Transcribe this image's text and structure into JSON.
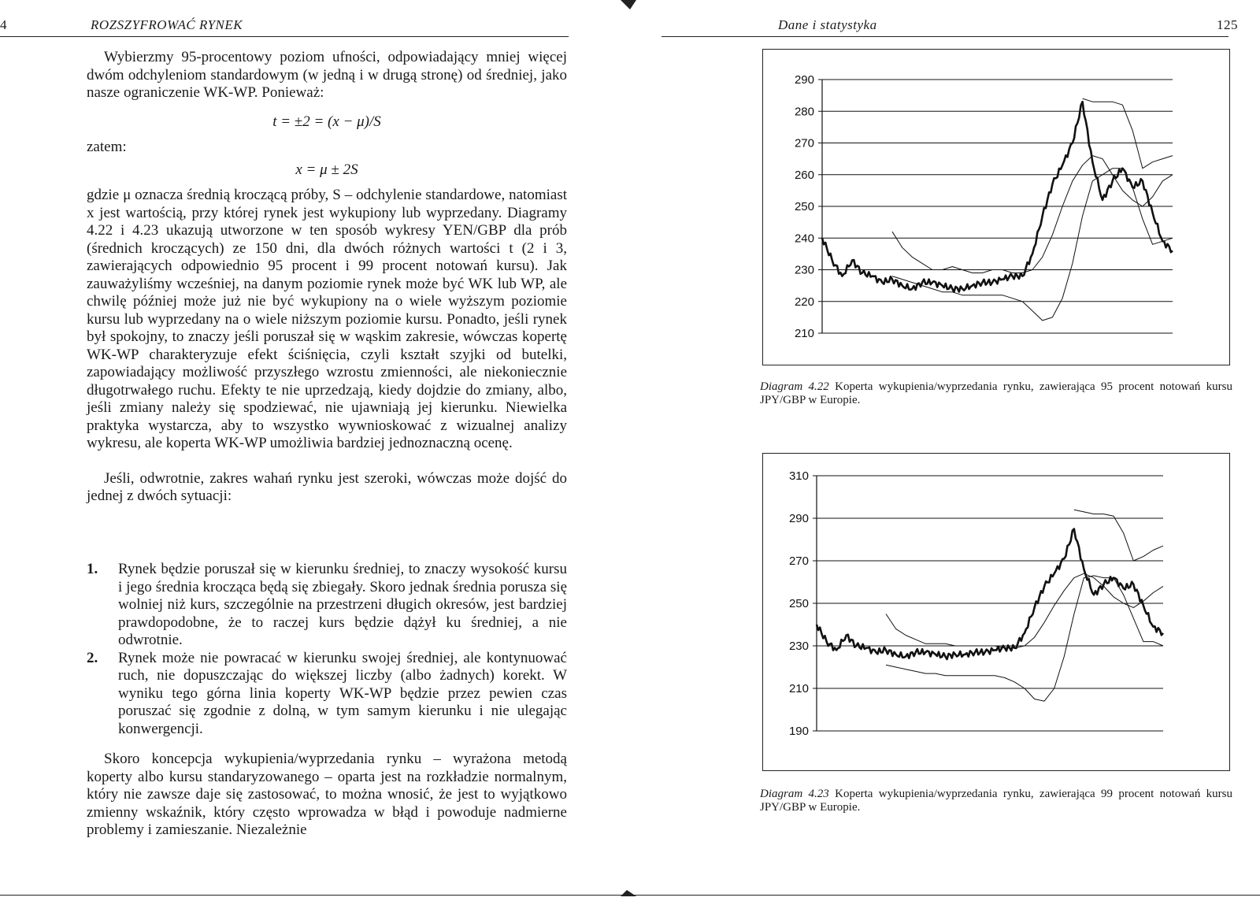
{
  "left_page": {
    "page_number": "4",
    "running_title": "ROZSZYFROWAĆ RYNEK",
    "para1": "Wybierzmy 95-procentowy poziom ufności, odpowiadający mniej więcej dwóm odchyleniom standardowym (w jedną i w drugą stronę) od średniej, jako nasze ograniczenie WK-WP. Ponieważ:",
    "formula1": "t = ±2 = (x − μ)/S",
    "zatem": "zatem:",
    "formula2": "x = μ ± 2S",
    "para2": "gdzie μ oznacza średnią kroczącą próby, S – odchylenie standardowe, natomiast x jest wartością, przy której rynek jest wykupiony lub wyprzedany. Diagramy 4.22 i 4.23 ukazują utworzone w ten sposób wykresy YEN/GBP dla prób (średnich kroczących) ze 150 dni, dla dwóch różnych wartości t (2 i 3, zawierających odpowiednio 95 procent i 99 procent notowań kursu). Jak zauważyliśmy wcześniej, na danym poziomie rynek może być WK lub WP, ale chwilę później może już nie być wykupiony na o wiele wyższym poziomie kursu lub wyprzedany na o wiele niższym poziomie kursu. Ponadto, jeśli rynek był spokojny, to znaczy jeśli poruszał się w wąskim zakresie, wówczas kopertę WK-WP charakteryzuje efekt ściśnięcia, czyli kształt szyjki od butelki, zapowiadający możliwość przyszłego wzrostu zmienności, ale niekoniecznie długotrwałego ruchu. Efekty te nie uprzedzają, kiedy dojdzie do zmiany, albo, jeśli zmiany należy się spodziewać, nie ujawniają jej kierunku. Niewielka praktyka wystarcza, aby to wszystko wywnioskować z wizualnej analizy wykresu, ale koperta WK-WP umożliwia bardziej jednoznaczną ocenę.",
    "para3": "Jeśli, odwrotnie, zakres wahań rynku jest szeroki, wówczas może dojść do jednej z dwóch sytuacji:",
    "list": [
      {
        "num": "1.",
        "text": "Rynek będzie poruszał się w kierunku średniej, to znaczy wysokość kursu i jego średnia krocząca będą się zbiegały. Skoro jednak średnia porusza się wolniej niż kurs, szczególnie na przestrzeni długich okresów, jest bardziej prawdopodobne, że to raczej kurs będzie dążył ku średniej, a nie odwrotnie."
      },
      {
        "num": "2.",
        "text": "Rynek może nie powracać w kierunku swojej średniej, ale kontynuować ruch, nie dopuszczając do większej liczby (albo żadnych) korekt. W wyniku tego górna linia koperty WK-WP będzie przez pewien czas poruszać się zgodnie z dolną, w tym samym kierunku i nie ulegając konwergencji."
      }
    ],
    "para4": "Skoro koncepcja wykupienia/wyprzedania rynku – wyrażona metodą koperty albo kursu standaryzowanego – oparta jest na rozkładzie normalnym, który nie zawsze daje się zastosować, to można wnosić, że jest to wyjątkowo zmienny wskaźnik, który często wprowadza w błąd i powoduje nadmierne problemy i zamieszanie. Niezależnie"
  },
  "right_page": {
    "page_number": "125",
    "running_title": "Dane i statystyka",
    "caption1_label": "Diagram 4.22",
    "caption1_text": "Koperta wykupienia/wyprzedania rynku, zawierająca 95 procent notowań kursu JPY/GBP w Europie.",
    "caption2_label": "Diagram 4.23",
    "caption2_text": "Koperta wykupienia/wyprzedania rynku, zawierająca 99 procent notowań kursu JPY/GBP w Europie."
  },
  "chart_data": [
    {
      "type": "line",
      "title": "",
      "xlabel": "",
      "ylabel": "",
      "ylim": [
        210,
        290
      ],
      "y_ticks": [
        "290",
        "280",
        "270",
        "260",
        "250",
        "240",
        "230",
        "220",
        "210"
      ],
      "grid": true,
      "series": [
        {
          "values": [
            240,
            233,
            228,
            233,
            229,
            228,
            226,
            227,
            225,
            224,
            226,
            226,
            225,
            224,
            224,
            225,
            226,
            226,
            227,
            228,
            228,
            235,
            247,
            257,
            263,
            270,
            283,
            264,
            252,
            258,
            262,
            256,
            258,
            248,
            239,
            236
          ]
        },
        {
          "values": [
            null,
            null,
            null,
            null,
            null,
            null,
            null,
            242,
            237,
            234,
            232,
            230,
            230,
            231,
            230,
            229,
            229,
            230,
            230,
            229,
            229,
            230,
            234,
            241,
            250,
            258,
            263,
            266,
            265,
            260,
            255,
            252,
            250,
            253,
            258,
            260
          ]
        },
        {
          "values": [
            null,
            null,
            null,
            null,
            null,
            null,
            null,
            228,
            227,
            226,
            225,
            224,
            223,
            223,
            222,
            222,
            222,
            222,
            222,
            221,
            220,
            217,
            214,
            215,
            221,
            232,
            247,
            258,
            260,
            262,
            262,
            256,
            246,
            238,
            239,
            240
          ]
        },
        {
          "values": [
            null,
            null,
            null,
            null,
            null,
            null,
            null,
            null,
            null,
            null,
            null,
            null,
            null,
            null,
            null,
            null,
            null,
            null,
            null,
            null,
            null,
            null,
            null,
            null,
            null,
            null,
            284,
            283,
            283,
            283,
            282,
            274,
            262,
            264,
            265,
            266
          ]
        }
      ]
    },
    {
      "type": "line",
      "title": "",
      "xlabel": "",
      "ylabel": "",
      "ylim": [
        190,
        310
      ],
      "y_ticks": [
        "310",
        "290",
        "270",
        "250",
        "230",
        "210",
        "190"
      ],
      "grid": true,
      "series": [
        {
          "values": [
            240,
            232,
            228,
            235,
            230,
            229,
            227,
            228,
            226,
            225,
            227,
            227,
            226,
            225,
            226,
            226,
            227,
            227,
            228,
            229,
            229,
            236,
            248,
            258,
            264,
            271,
            285,
            266,
            254,
            259,
            262,
            257,
            259,
            249,
            239,
            236
          ]
        },
        {
          "values": [
            null,
            null,
            null,
            null,
            null,
            null,
            null,
            245,
            238,
            235,
            233,
            231,
            231,
            231,
            230,
            230,
            230,
            230,
            230,
            229,
            229,
            230,
            234,
            241,
            249,
            256,
            262,
            264,
            262,
            258,
            253,
            250,
            248,
            251,
            255,
            258
          ]
        },
        {
          "values": [
            null,
            null,
            null,
            null,
            null,
            null,
            null,
            221,
            220,
            219,
            218,
            217,
            217,
            216,
            216,
            216,
            216,
            216,
            216,
            215,
            213,
            210,
            205,
            204,
            210,
            225,
            245,
            262,
            263,
            262,
            262,
            254,
            243,
            232,
            232,
            230
          ]
        },
        {
          "values": [
            null,
            null,
            null,
            null,
            null,
            null,
            null,
            null,
            null,
            null,
            null,
            null,
            null,
            null,
            null,
            null,
            null,
            null,
            null,
            null,
            null,
            null,
            null,
            null,
            null,
            null,
            294,
            293,
            292,
            292,
            291,
            283,
            270,
            272,
            275,
            277
          ]
        }
      ]
    }
  ]
}
